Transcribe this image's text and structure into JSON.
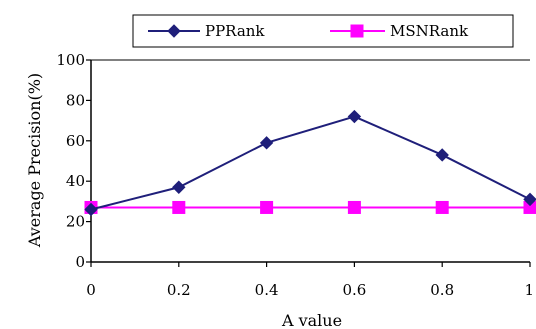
{
  "chart_data": {
    "type": "line",
    "title": "",
    "xlabel": "A value",
    "ylabel": "Average Precision(%)",
    "x": [
      0,
      0.2,
      0.4,
      0.6,
      0.8,
      1
    ],
    "x_tick_labels": [
      "0",
      "0.2",
      "0.4",
      "0.6",
      "0.8",
      "1"
    ],
    "y_tick_labels": [
      "0",
      "20",
      "40",
      "60",
      "80",
      "100"
    ],
    "xlim": [
      0,
      1
    ],
    "ylim": [
      0,
      100
    ],
    "grid": false,
    "legend_position": "top",
    "series": [
      {
        "name": "PPRank",
        "marker": "diamond",
        "color": "#1f1f7a",
        "values": [
          26,
          37,
          59,
          72,
          53,
          31
        ]
      },
      {
        "name": "MSNRank",
        "marker": "square",
        "color": "#ff00ff",
        "values": [
          27,
          27,
          27,
          27,
          27,
          27
        ]
      }
    ]
  }
}
